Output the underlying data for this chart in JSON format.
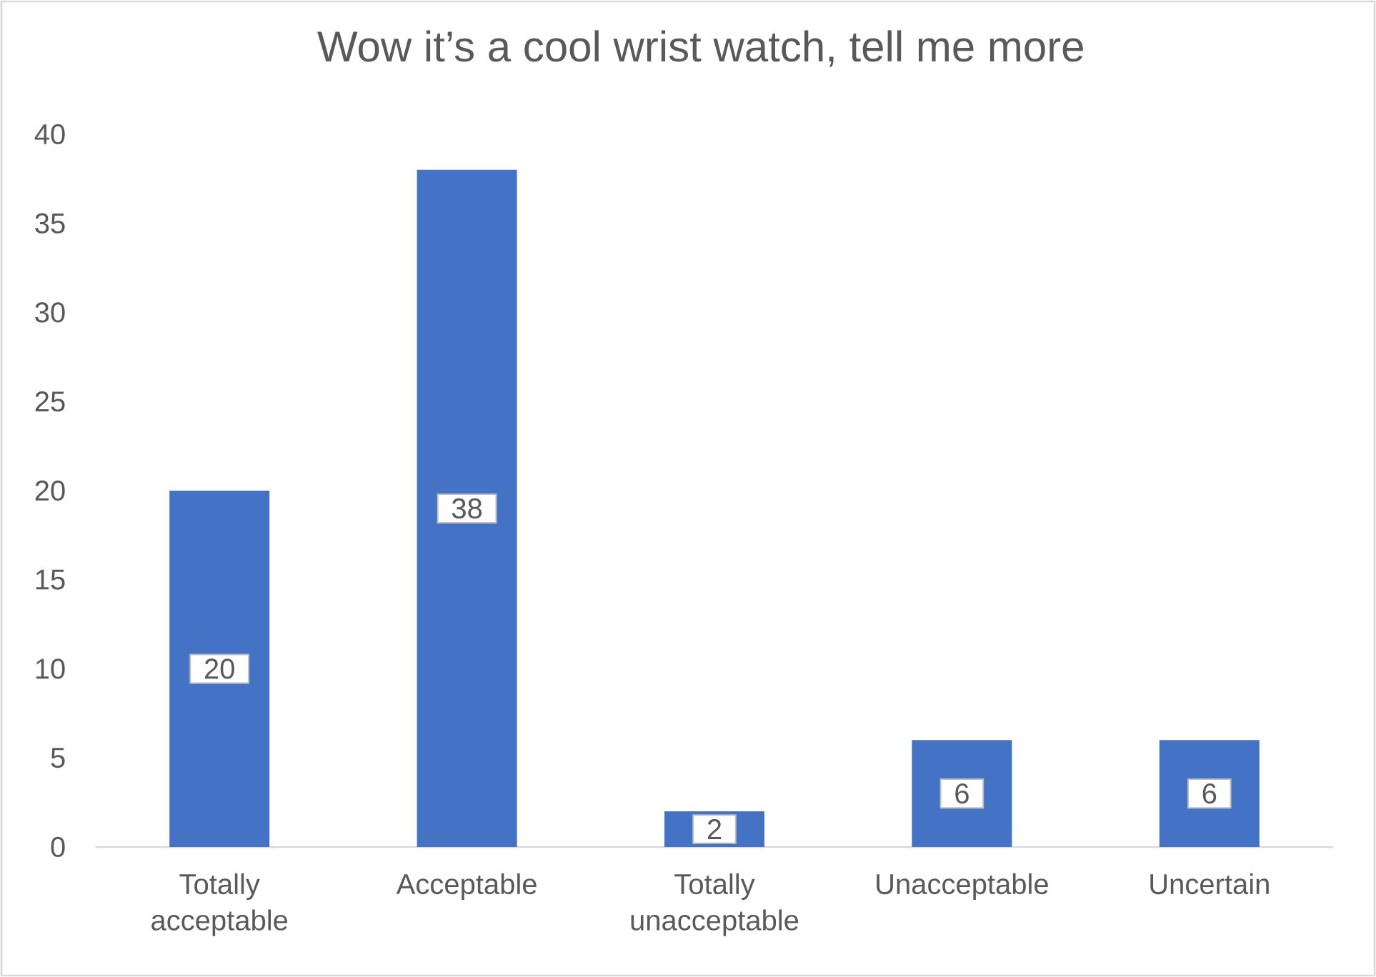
{
  "chart_data": {
    "type": "bar",
    "title": "Wow it’s a cool wrist watch, tell me more",
    "categories": [
      "Totally acceptable",
      "Acceptable",
      "Totally unacceptable",
      "Unacceptable",
      "Uncertain"
    ],
    "values": [
      20,
      38,
      2,
      6,
      6
    ],
    "color": "#4472c4",
    "ylim": [
      0,
      40
    ],
    "yticks": [
      0,
      5,
      10,
      15,
      20,
      25,
      30,
      35,
      40
    ],
    "data_labels": true
  }
}
